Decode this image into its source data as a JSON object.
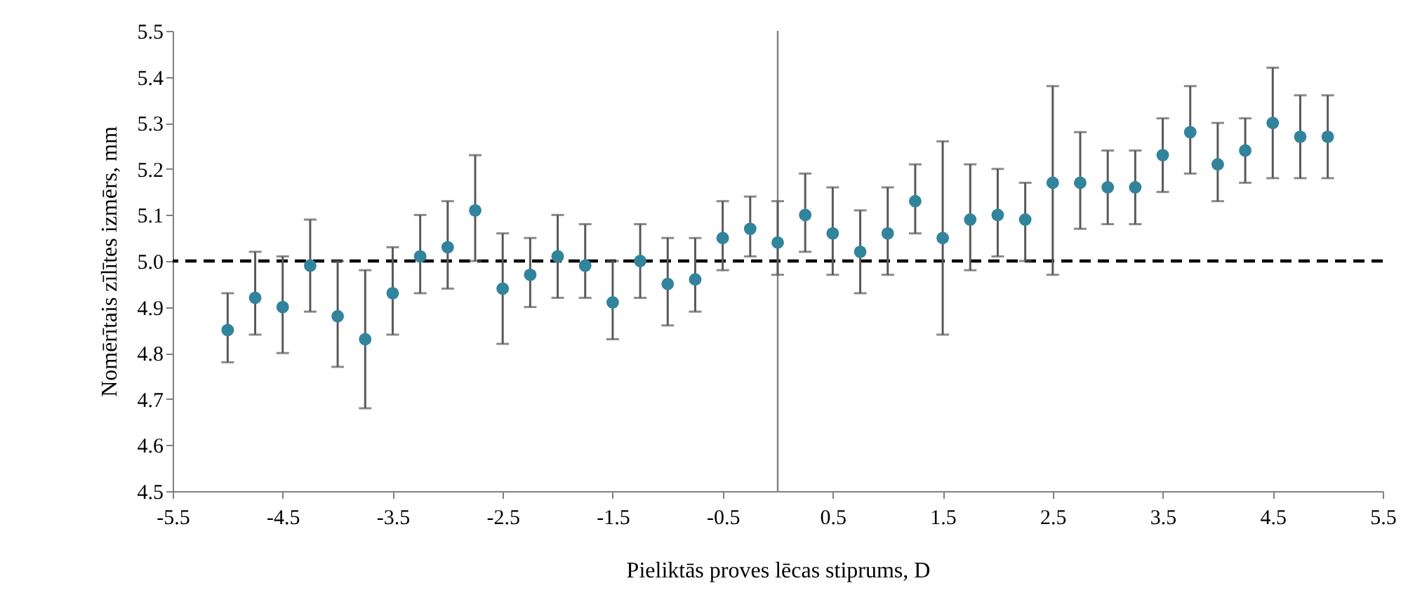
{
  "chart_data": {
    "type": "scatter",
    "xlabel": "Pieliktās proves lēcas stiprums, D",
    "ylabel": "Nomērītais zīlītes izmērs, mm",
    "x": [
      -5,
      -4.75,
      -4.5,
      -4.25,
      -4,
      -3.75,
      -3.5,
      -3.25,
      -3,
      -2.75,
      -2.5,
      -2.25,
      -2,
      -1.75,
      -1.5,
      -1.25,
      -1,
      -0.75,
      -0.5,
      -0.25,
      0,
      0.25,
      0.5,
      0.75,
      1,
      1.25,
      1.5,
      1.75,
      2,
      2.25,
      2.5,
      2.75,
      3,
      3.25,
      3.5,
      3.75,
      4,
      4.25,
      4.5,
      4.75,
      5
    ],
    "values": [
      4.85,
      4.92,
      4.9,
      4.99,
      4.88,
      4.83,
      4.93,
      5.01,
      5.03,
      5.11,
      4.94,
      4.97,
      5.01,
      4.99,
      4.91,
      5.0,
      4.95,
      4.96,
      5.05,
      5.07,
      5.04,
      5.1,
      5.06,
      5.02,
      5.06,
      5.13,
      5.05,
      5.09,
      5.1,
      5.09,
      5.17,
      5.17,
      5.16,
      5.16,
      5.23,
      5.28,
      5.21,
      5.24,
      5.3,
      5.27,
      5.27
    ],
    "errors": [
      [
        4.78,
        4.93
      ],
      [
        4.84,
        5.02
      ],
      [
        4.8,
        5.01
      ],
      [
        4.89,
        5.09
      ],
      [
        4.77,
        5.0
      ],
      [
        4.68,
        4.98
      ],
      [
        4.84,
        5.03
      ],
      [
        4.93,
        5.1
      ],
      [
        4.94,
        5.13
      ],
      [
        5.0,
        5.23
      ],
      [
        4.82,
        5.06
      ],
      [
        4.9,
        5.05
      ],
      [
        4.92,
        5.1
      ],
      [
        4.92,
        5.08
      ],
      [
        4.83,
        5.0
      ],
      [
        4.92,
        5.08
      ],
      [
        4.86,
        5.05
      ],
      [
        4.89,
        5.05
      ],
      [
        4.98,
        5.13
      ],
      [
        5.01,
        5.14
      ],
      [
        4.97,
        5.13
      ],
      [
        5.02,
        5.19
      ],
      [
        4.97,
        5.16
      ],
      [
        4.93,
        5.11
      ],
      [
        4.97,
        5.16
      ],
      [
        5.06,
        5.21
      ],
      [
        4.84,
        5.26
      ],
      [
        4.98,
        5.21
      ],
      [
        5.01,
        5.2
      ],
      [
        5.0,
        5.17
      ],
      [
        4.97,
        5.38
      ],
      [
        5.07,
        5.28
      ],
      [
        5.08,
        5.24
      ],
      [
        5.08,
        5.24
      ],
      [
        5.15,
        5.31
      ],
      [
        5.19,
        5.38
      ],
      [
        5.13,
        5.3
      ],
      [
        5.17,
        5.31
      ],
      [
        5.18,
        5.42
      ],
      [
        5.18,
        5.36
      ],
      [
        5.18,
        5.36
      ]
    ],
    "color": "#31849b",
    "marker": "circle",
    "grid": false,
    "xlim": [
      -5.5,
      5.5
    ],
    "xticks": [
      -5.5,
      -4.5,
      -3.5,
      -2.5,
      -1.5,
      -0.5,
      0.5,
      1.5,
      2.5,
      3.5,
      4.5,
      5.5
    ],
    "ylim": [
      4.5,
      5.5
    ],
    "yticks": [
      4.5,
      4.6,
      4.7,
      4.8,
      4.9,
      {
        "value": 5,
        "label": "5.0"
      },
      5.1,
      5.2,
      5.3,
      5.4,
      5.5
    ],
    "ref_lines": [
      {
        "axis": "y",
        "value": 5,
        "line_style": "dashed",
        "color": "#000000"
      },
      {
        "axis": "x",
        "value": 0,
        "line_style": "solid",
        "color": "#808080"
      }
    ]
  }
}
